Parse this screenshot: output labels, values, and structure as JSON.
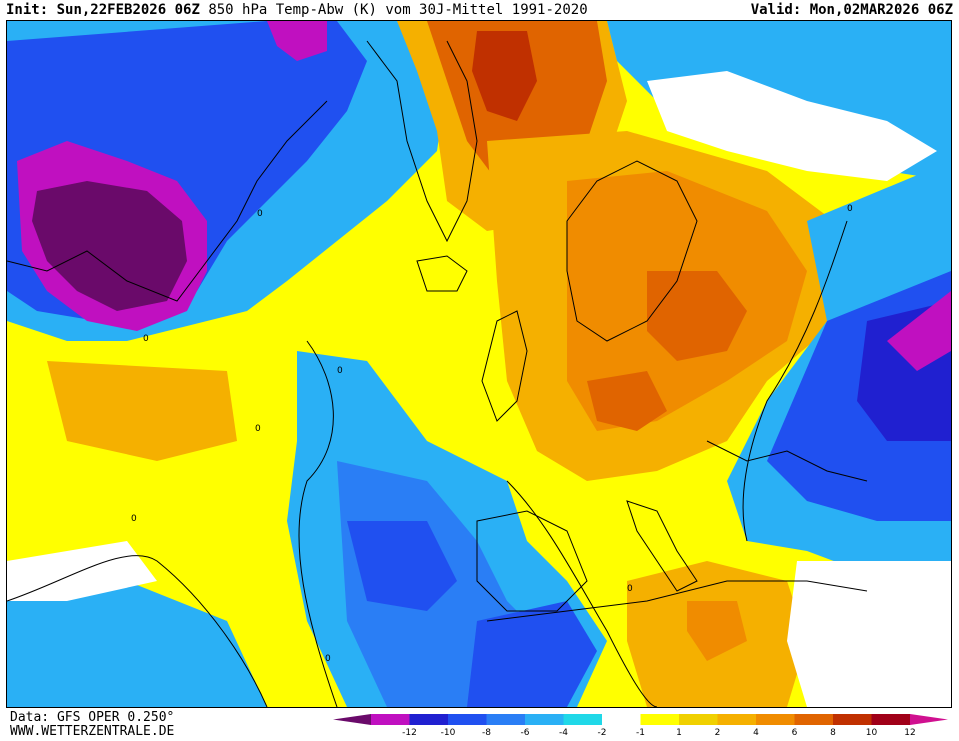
{
  "header": {
    "init_label": "Init:",
    "init_value": "Sun,22FEB2026 06Z",
    "title": "850 hPa Temp-Abw (K) vom 30J-Mittel 1991-2020",
    "valid_label": "Valid:",
    "valid_value": "Mon,02MAR2026 06Z"
  },
  "footer": {
    "data_source": "Data: GFS OPER 0.250°",
    "website": "WWW.WETTERZENTRALE.DE"
  },
  "legend": {
    "colors": [
      "#6a0a6a",
      "#c010c0",
      "#2020d0",
      "#2050f0",
      "#2a7ef5",
      "#2ab0f5",
      "#20d8e8",
      "#ffffff",
      "#ffff00",
      "#f0d000",
      "#f5b000",
      "#f08c00",
      "#e06400",
      "#c03000",
      "#a00018",
      "#d01090"
    ],
    "tick_labels": [
      "-12",
      "-10",
      "-8",
      "-6",
      "-4",
      "-2",
      "-1",
      "1",
      "2",
      "4",
      "6",
      "8",
      "10",
      "12"
    ]
  },
  "map": {
    "contour_label": "0",
    "anomaly_colors": {
      "strong_cold": "#6a0a6a",
      "very_cold": "#c010c0",
      "cold": "#2020d0",
      "moderately_cold": "#2a7ef5",
      "cool": "#2ab0f5",
      "slightly_cool": "#20d8e8",
      "neutral": "#ffffff",
      "slightly_warm": "#ffff00",
      "warm": "#f0d000",
      "warmer": "#f5b000",
      "very_warm": "#f08c00",
      "hot": "#e06400"
    }
  }
}
